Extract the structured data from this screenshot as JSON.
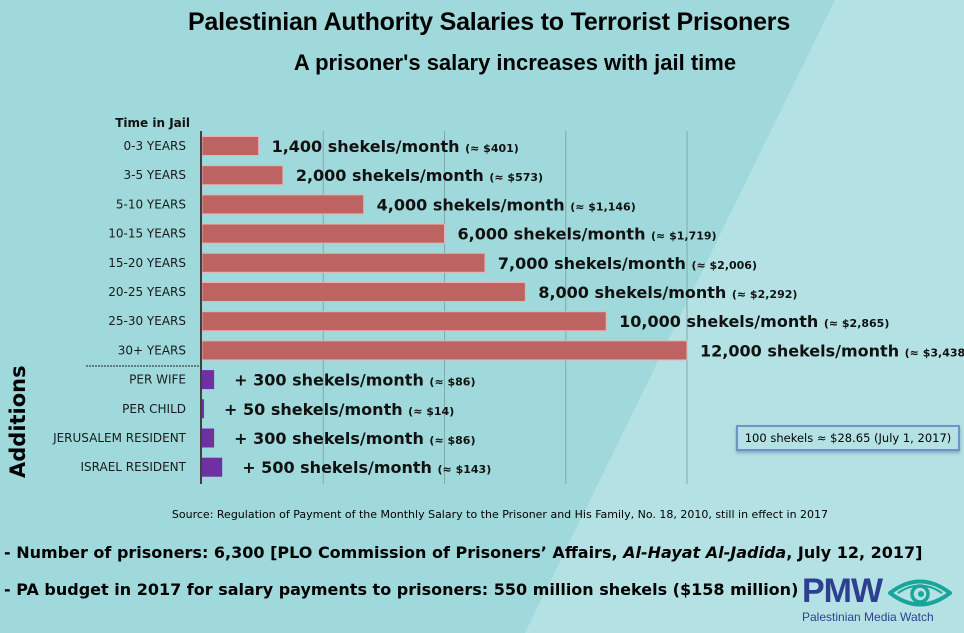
{
  "header": {
    "title": "Palestinian Authority Salaries to Terrorist Prisoners",
    "subtitle": "A prisoner's salary increases with jail time"
  },
  "colors": {
    "background": "#a0d9db",
    "background_light": "#b4e2e4",
    "salary_bar": "#bd6462",
    "addition_bar": "#7030a0",
    "axis": "#404040",
    "grid": "#7fa9ab",
    "logo_blue": "#2e3f8f",
    "logo_teal": "#1aa59a"
  },
  "chart_data": {
    "type": "bar",
    "orientation": "horizontal",
    "title": "Palestinian Authority Salaries to Terrorist Prisoners",
    "subtitle": "A prisoner's salary increases with jail time",
    "ylabel": "Time in Jail",
    "group_label": "Additions",
    "xlabel": "",
    "xlim": [
      0,
      12000
    ],
    "x_grid_step": 1500,
    "grid": true,
    "unit": "shekels/month",
    "series": [
      {
        "name": "Time in Jail",
        "categories": [
          "0-3 YEARS",
          "3-5 YEARS",
          "5-10 YEARS",
          "10-15 YEARS",
          "15-20 YEARS",
          "20-25 YEARS",
          "25-30 YEARS",
          "30+ YEARS"
        ],
        "values": [
          1400,
          2000,
          4000,
          6000,
          7000,
          8000,
          10000,
          12000
        ],
        "labels": [
          "1,400 shekels/month",
          "2,000 shekels/month",
          "4,000 shekels/month",
          "6,000 shekels/month",
          "7,000 shekels/month",
          "8,000 shekels/month",
          "10,000 shekels/month",
          "12,000 shekels/month"
        ],
        "usd_labels": [
          "(≈ $401)",
          "(≈ $573)",
          "(≈ $1,146)",
          "(≈ $1,719)",
          "(≈ $2,006)",
          "(≈ $2,292)",
          "(≈ $2,865)",
          "(≈ $3,438)"
        ]
      },
      {
        "name": "Additions",
        "categories": [
          "PER WIFE",
          "PER CHILD",
          "JERUSALEM RESIDENT",
          "ISRAEL RESIDENT"
        ],
        "values": [
          300,
          50,
          300,
          500
        ],
        "labels": [
          "+ 300 shekels/month",
          "+ 50 shekels/month",
          "+ 300 shekels/month",
          "+ 500 shekels/month"
        ],
        "usd_labels": [
          "(≈ $86)",
          "(≈ $14)",
          "(≈ $86)",
          "(≈ $143)"
        ]
      }
    ],
    "annotation": "100 shekels ≈ $28.65 (July 1, 2017)"
  },
  "footer": {
    "source": "Source: Regulation of Payment of the Monthly Salary to the Prisoner and His Family, No. 18, 2010, still in effect in 2017",
    "note1_prefix": "- Number of prisoners: 6,300 [PLO Commission of Prisoners’ Affairs, ",
    "note1_italic": "Al-Hayat Al-Jadida",
    "note1_suffix": ", July 12, 2017]",
    "note2": "- PA budget in 2017 for salary payments to prisoners: 550 million shekels ($158 million)"
  },
  "logo": {
    "name": "PMW",
    "tagline": "Palestinian Media Watch",
    "icon": "eye-icon"
  }
}
